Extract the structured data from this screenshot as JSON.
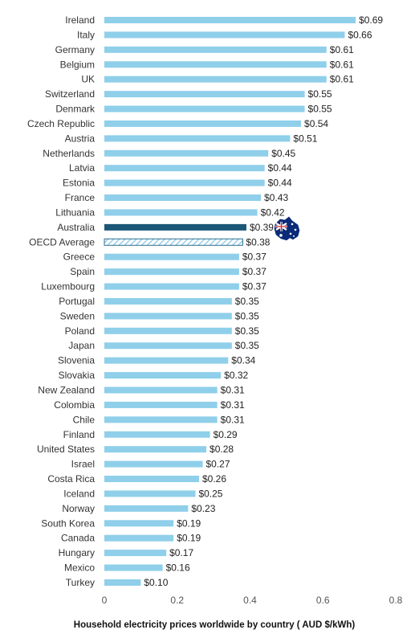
{
  "chart_data": {
    "type": "bar",
    "orientation": "horizontal",
    "title": "Household electricity prices worldwide by country ( AUD $/kWh)",
    "categories": [
      "Ireland",
      "Italy",
      "Germany",
      "Belgium",
      "UK",
      "Switzerland",
      "Denmark",
      "Czech Republic",
      "Austria",
      "Netherlands",
      "Latvia",
      "Estonia",
      "France",
      "Lithuania",
      "Australia",
      "OECD Average",
      "Greece",
      "Spain",
      "Luxembourg",
      "Portugal",
      "Sweden",
      "Poland",
      "Japan",
      "Slovenia",
      "Slovakia",
      "New Zealand",
      "Colombia",
      "Chile",
      "Finland",
      "United States",
      "Israel",
      "Costa Rica",
      "Iceland",
      "Norway",
      "South Korea",
      "Canada",
      "Hungary",
      "Mexico",
      "Turkey"
    ],
    "values": [
      0.69,
      0.66,
      0.61,
      0.61,
      0.61,
      0.55,
      0.55,
      0.54,
      0.51,
      0.45,
      0.44,
      0.44,
      0.43,
      0.42,
      0.39,
      0.38,
      0.37,
      0.37,
      0.37,
      0.35,
      0.35,
      0.35,
      0.35,
      0.34,
      0.32,
      0.31,
      0.31,
      0.31,
      0.29,
      0.28,
      0.27,
      0.26,
      0.25,
      0.23,
      0.19,
      0.19,
      0.17,
      0.16,
      0.1
    ],
    "value_labels": [
      "$0.69",
      "$0.66",
      "$0.61",
      "$0.61",
      "$0.61",
      "$0.55",
      "$0.55",
      "$0.54",
      "$0.51",
      "$0.45",
      "$0.44",
      "$0.44",
      "$0.43",
      "$0.42",
      "$0.39",
      "$0.38",
      "$0.37",
      "$0.37",
      "$0.37",
      "$0.35",
      "$0.35",
      "$0.35",
      "$0.35",
      "$0.34",
      "$0.32",
      "$0.31",
      "$0.31",
      "$0.31",
      "$0.29",
      "$0.28",
      "$0.27",
      "$0.26",
      "$0.25",
      "$0.23",
      "$0.19",
      "$0.19",
      "$0.17",
      "$0.16",
      "$0.10"
    ],
    "xlim": [
      0,
      0.8
    ],
    "xticks": [
      0,
      0.2,
      0.4,
      0.6,
      0.8
    ],
    "xtick_labels": [
      "0",
      "0.2",
      "0.4",
      "0.6",
      "0.8"
    ],
    "grid": false,
    "legend": "none",
    "colors": {
      "bar": "#8fcfea",
      "highlight": "#1b5777",
      "average_stroke": "#2e6e93",
      "average_hatch": "#7fc3e3"
    },
    "highlight_category": "Australia",
    "average_category": "OECD Average",
    "annotation_icon": "australian-flag-map-icon"
  }
}
